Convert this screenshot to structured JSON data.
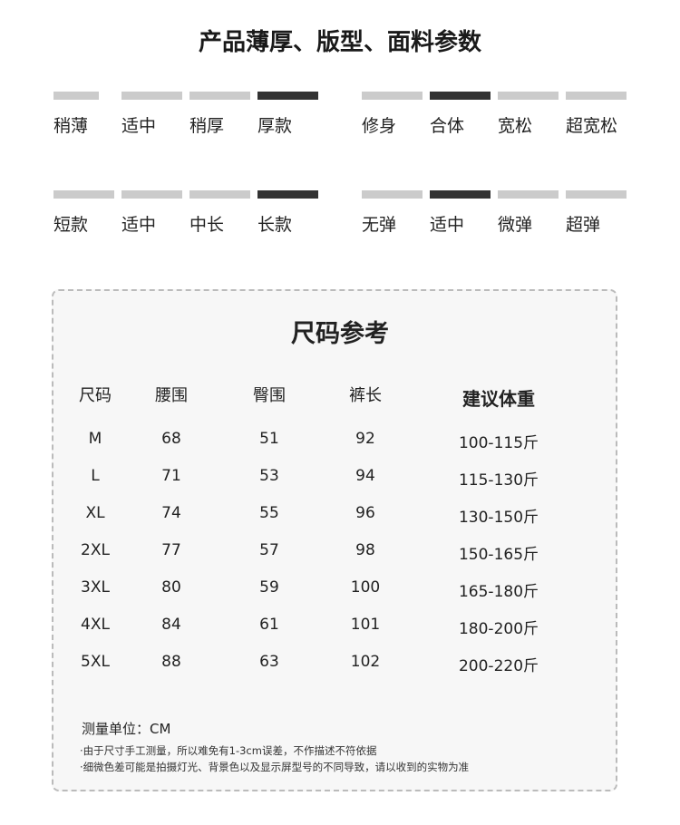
{
  "title": "产品薄厚、版型、面料参数",
  "params": [
    {
      "group": "thickness",
      "options": [
        "稍薄",
        "适中",
        "稍厚",
        "厚款"
      ],
      "selected": 3
    },
    {
      "group": "fit",
      "options": [
        "修身",
        "合体",
        "宽松",
        "超宽松"
      ],
      "selected": 1
    },
    {
      "group": "length",
      "options": [
        "短款",
        "适中",
        "中长",
        "长款"
      ],
      "selected": 3
    },
    {
      "group": "stretch",
      "options": [
        "无弹",
        "适中",
        "微弹",
        "超弹"
      ],
      "selected": 1
    }
  ],
  "colors": {
    "selected": "#333333",
    "unselected": "#cbcbcb"
  },
  "size_chart": {
    "title": "尺码参考",
    "headers": [
      "尺码",
      "腰围",
      "臀围",
      "裤长",
      "建议体重"
    ],
    "rows": [
      [
        "M",
        "68",
        "51",
        "92",
        "100-115斤"
      ],
      [
        "L",
        "71",
        "53",
        "94",
        "115-130斤"
      ],
      [
        "XL",
        "74",
        "55",
        "96",
        "130-150斤"
      ],
      [
        "2XL",
        "77",
        "57",
        "98",
        "150-165斤"
      ],
      [
        "3XL",
        "80",
        "59",
        "100",
        "165-180斤"
      ],
      [
        "4XL",
        "84",
        "61",
        "101",
        "180-200斤"
      ],
      [
        "5XL",
        "88",
        "63",
        "102",
        "200-220斤"
      ]
    ],
    "unit": "测量单位：CM",
    "notes": [
      "·由于尺寸手工测量，所以难免有1-3cm误差，不作描述不符依据",
      "·细微色差可能是拍摄灯光、背景色以及显示屏型号的不同导致，请以收到的实物为准"
    ]
  }
}
